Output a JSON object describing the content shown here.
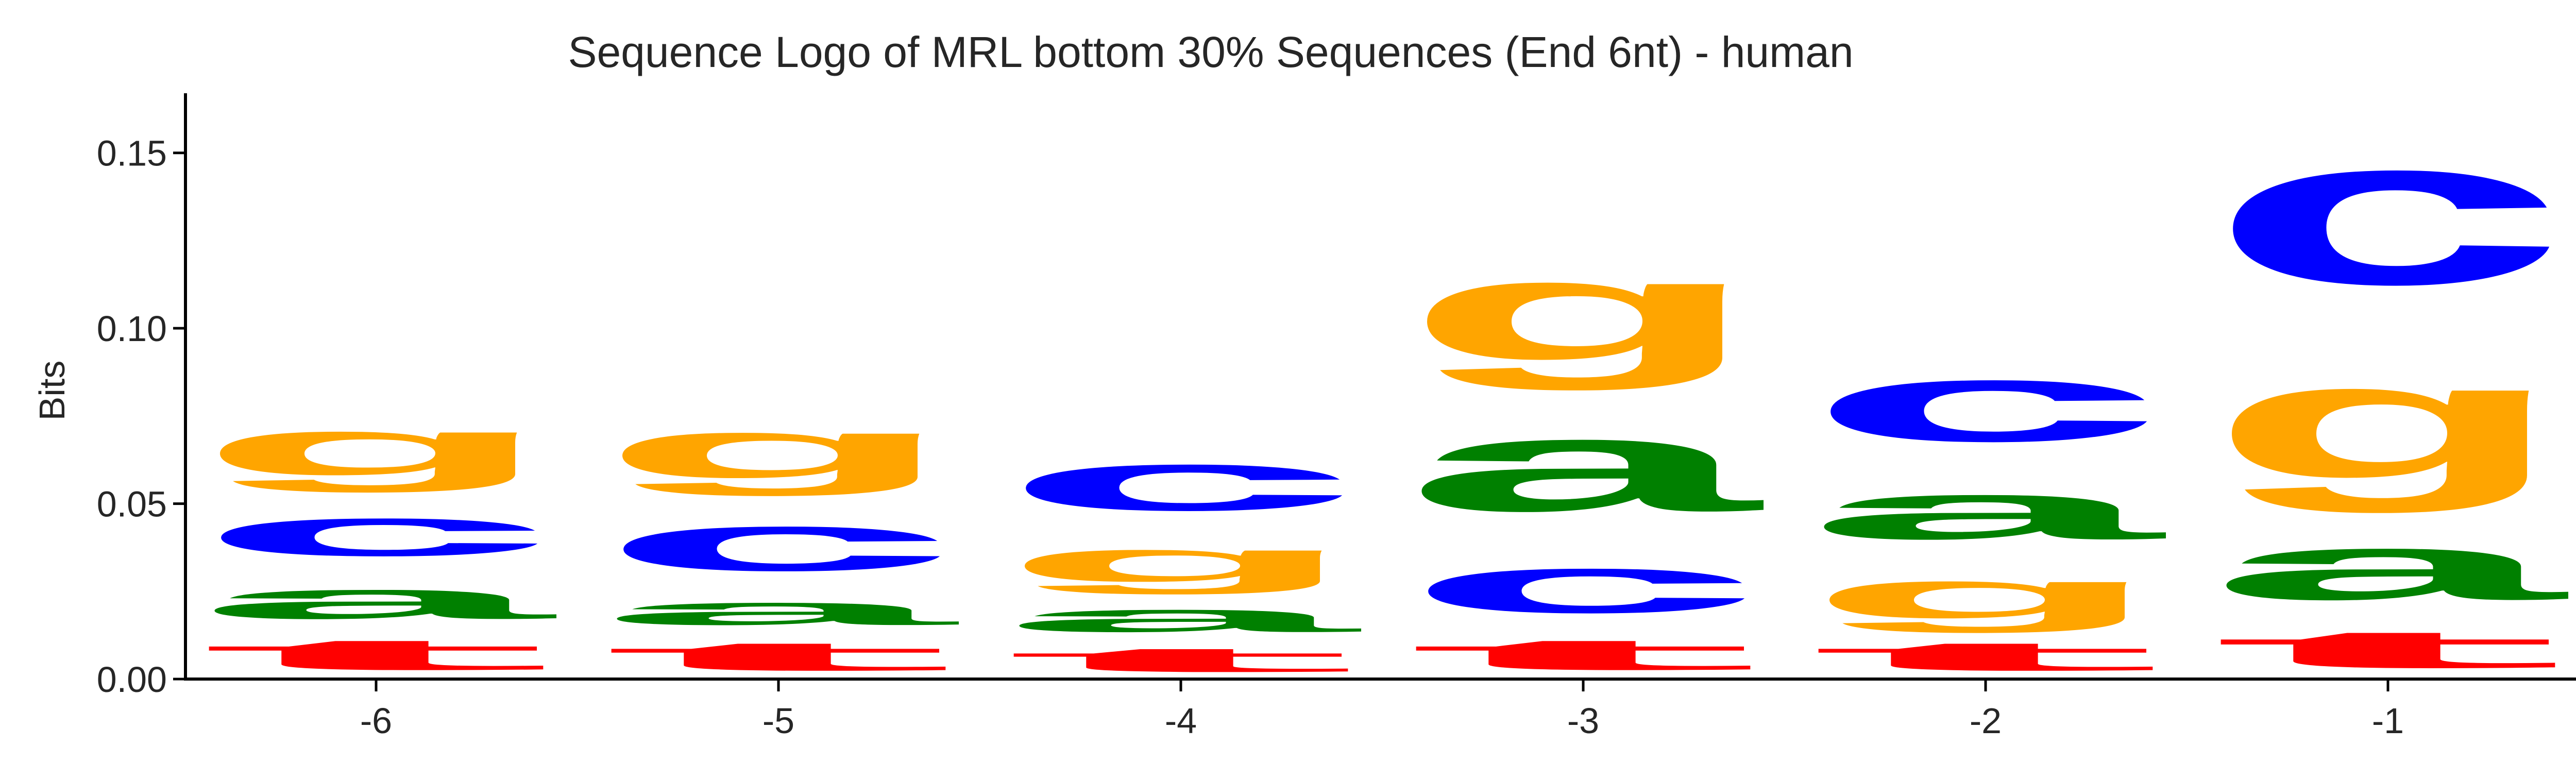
{
  "chart_data": {
    "type": "sequence-logo",
    "title": "Sequence Logo of MRL bottom 30% Sequences (End 6nt) - human",
    "xlabel": "",
    "ylabel": "Bits",
    "ylim": [
      0,
      0.167
    ],
    "yticks": [
      {
        "value": 0.0,
        "label": "0.00"
      },
      {
        "value": 0.05,
        "label": "0.05"
      },
      {
        "value": 0.1,
        "label": "0.10"
      },
      {
        "value": 0.15,
        "label": "0.15"
      }
    ],
    "grid": false,
    "letter_colors": {
      "a": "#008000",
      "c": "#0000ff",
      "g": "#ffa500",
      "t": "#ff0000"
    },
    "positions": [
      {
        "label": "-6",
        "stack": [
          {
            "letter": "t",
            "bits": 0.014
          },
          {
            "letter": "a",
            "bits": 0.017
          },
          {
            "letter": "c",
            "bits": 0.022
          },
          {
            "letter": "g",
            "bits": 0.026
          }
        ]
      },
      {
        "label": "-5",
        "stack": [
          {
            "letter": "t",
            "bits": 0.013
          },
          {
            "letter": "a",
            "bits": 0.013
          },
          {
            "letter": "c",
            "bits": 0.026
          },
          {
            "letter": "g",
            "bits": 0.027
          }
        ]
      },
      {
        "label": "-4",
        "stack": [
          {
            "letter": "t",
            "bits": 0.011
          },
          {
            "letter": "a",
            "bits": 0.013
          },
          {
            "letter": "g",
            "bits": 0.019
          },
          {
            "letter": "c",
            "bits": 0.027
          }
        ]
      },
      {
        "label": "-3",
        "stack": [
          {
            "letter": "t",
            "bits": 0.014
          },
          {
            "letter": "c",
            "bits": 0.026
          },
          {
            "letter": "a",
            "bits": 0.042
          },
          {
            "letter": "g",
            "bits": 0.046
          }
        ]
      },
      {
        "label": "-2",
        "stack": [
          {
            "letter": "t",
            "bits": 0.013
          },
          {
            "letter": "g",
            "bits": 0.022
          },
          {
            "letter": "a",
            "bits": 0.026
          },
          {
            "letter": "c",
            "bits": 0.036
          }
        ]
      },
      {
        "label": "-1",
        "stack": [
          {
            "letter": "t",
            "bits": 0.017
          },
          {
            "letter": "a",
            "bits": 0.03
          },
          {
            "letter": "g",
            "bits": 0.053
          },
          {
            "letter": "c",
            "bits": 0.067
          }
        ]
      }
    ]
  }
}
